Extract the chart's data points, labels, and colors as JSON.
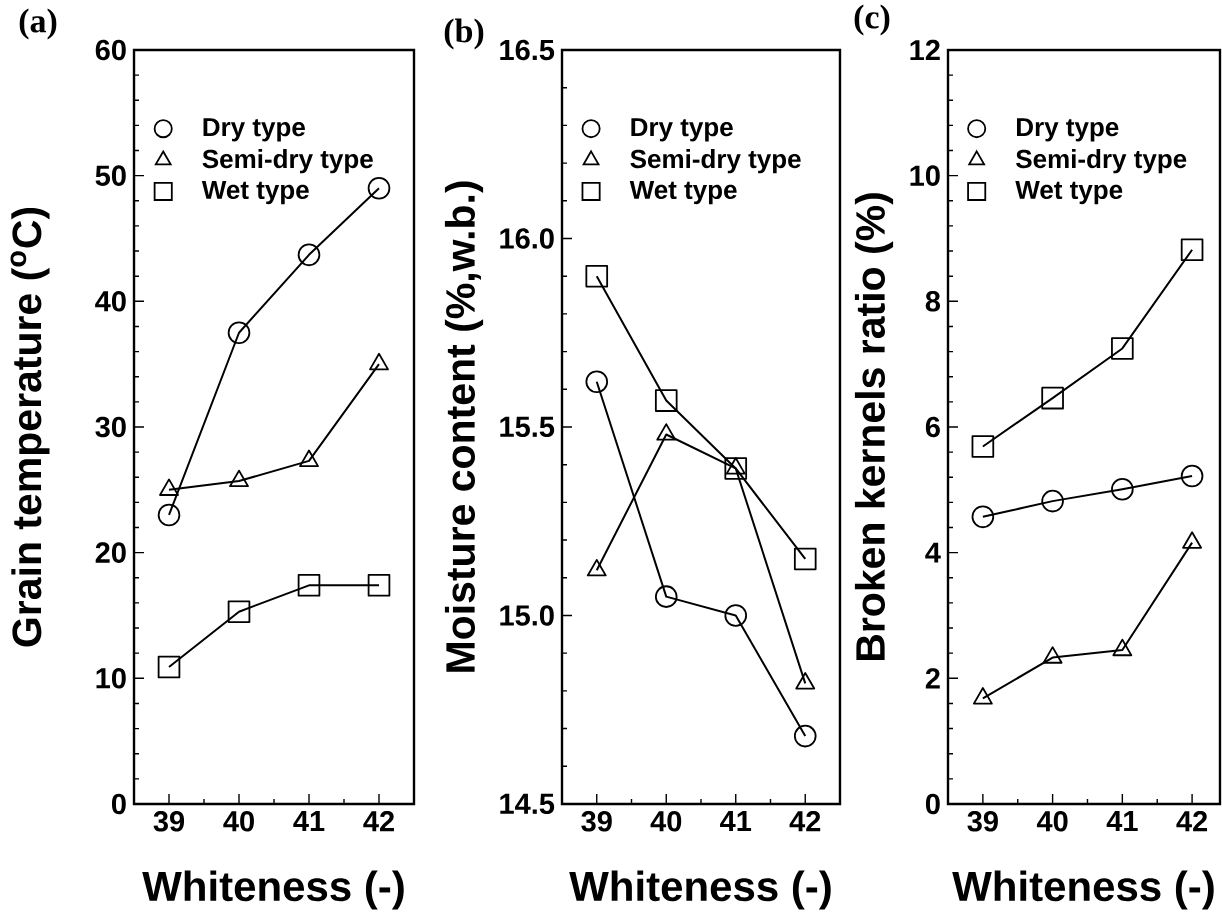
{
  "chart_data": [
    {
      "type": "line",
      "title": "(a)",
      "xlabel": "Whiteness (-)",
      "ylabel": "Grain temperature ($^{o}$C)",
      "x": [
        39,
        40,
        41,
        42
      ],
      "xlim": [
        38.5,
        42.5
      ],
      "xticks": [
        39,
        {
          "value": 39.5,
          "label": null
        },
        40,
        {
          "value": 40.5,
          "label": null
        },
        41,
        {
          "value": 41.5,
          "label": null
        },
        42
      ],
      "ylim": [
        0,
        60
      ],
      "yticks": [
        0,
        {
          "value": 2,
          "label": null
        },
        {
          "value": 4,
          "label": null
        },
        {
          "value": 6,
          "label": null
        },
        {
          "value": 8,
          "label": null
        },
        10,
        {
          "value": 12,
          "label": null
        },
        {
          "value": 14,
          "label": null
        },
        {
          "value": 16,
          "label": null
        },
        {
          "value": 18,
          "label": null
        },
        20,
        {
          "value": 22,
          "label": null
        },
        {
          "value": 24,
          "label": null
        },
        {
          "value": 26,
          "label": null
        },
        {
          "value": 28,
          "label": null
        },
        30,
        {
          "value": 32,
          "label": null
        },
        {
          "value": 34,
          "label": null
        },
        {
          "value": 36,
          "label": null
        },
        {
          "value": 38,
          "label": null
        },
        40,
        {
          "value": 42,
          "label": null
        },
        {
          "value": 44,
          "label": null
        },
        {
          "value": 46,
          "label": null
        },
        {
          "value": 48,
          "label": null
        },
        50,
        {
          "value": 52,
          "label": null
        },
        {
          "value": 54,
          "label": null
        },
        {
          "value": 56,
          "label": null
        },
        {
          "value": 58,
          "label": null
        },
        60
      ],
      "series": [
        {
          "name": "Dry type",
          "color": "#000000",
          "marker": "circle",
          "values": [
            23.0,
            37.5,
            43.7,
            49.0
          ]
        },
        {
          "name": "Semi-dry type",
          "color": "#000000",
          "marker": "triangle",
          "values": [
            25.0,
            25.7,
            27.3,
            35.0
          ]
        },
        {
          "name": "Wet type",
          "color": "#000000",
          "marker": "square",
          "values": [
            10.9,
            15.3,
            17.4,
            17.4
          ]
        }
      ],
      "legend": "top left",
      "grid": false
    },
    {
      "type": "line",
      "title": "(b)",
      "xlabel": "Whiteness (-)",
      "ylabel": "Moisture content (%,w.b.)",
      "x": [
        39,
        40,
        41,
        42
      ],
      "xlim": [
        38.5,
        42.5
      ],
      "xticks": [
        39,
        {
          "value": 39.5,
          "label": null
        },
        40,
        {
          "value": 40.5,
          "label": null
        },
        41,
        {
          "value": 41.5,
          "label": null
        },
        42
      ],
      "ylim": [
        14.5,
        16.5
      ],
      "yticks": [
        14.5,
        {
          "value": 14.6,
          "label": null
        },
        {
          "value": 14.7,
          "label": null
        },
        {
          "value": 14.8,
          "label": null
        },
        {
          "value": 14.9,
          "label": null
        },
        {
          "value": 15,
          "label": "15.0"
        },
        {
          "value": 15.1,
          "label": null
        },
        {
          "value": 15.2,
          "label": null
        },
        {
          "value": 15.3,
          "label": null
        },
        {
          "value": 15.4,
          "label": null
        },
        15.5,
        {
          "value": 15.6,
          "label": null
        },
        {
          "value": 15.7,
          "label": null
        },
        {
          "value": 15.8,
          "label": null
        },
        {
          "value": 15.9,
          "label": null
        },
        {
          "value": 16,
          "label": "16.0"
        },
        {
          "value": 16.1,
          "label": null
        },
        {
          "value": 16.2,
          "label": null
        },
        {
          "value": 16.3,
          "label": null
        },
        {
          "value": 16.4,
          "label": null
        },
        16.5
      ],
      "series": [
        {
          "name": "Dry type",
          "color": "#000000",
          "marker": "circle",
          "values": [
            15.62,
            15.05,
            15.0,
            14.68
          ]
        },
        {
          "name": "Semi-dry type",
          "color": "#000000",
          "marker": "triangle",
          "values": [
            15.12,
            15.48,
            15.39,
            14.82
          ]
        },
        {
          "name": "Wet type",
          "color": "#000000",
          "marker": "square",
          "values": [
            15.9,
            15.57,
            15.39,
            15.15
          ]
        }
      ],
      "legend": "top left",
      "grid": false
    },
    {
      "type": "line",
      "title": "(c)",
      "xlabel": "Whiteness (-)",
      "ylabel": "Broken kernels ratio (%)",
      "x": [
        39,
        40,
        41,
        42
      ],
      "xlim": [
        38.5,
        42.4
      ],
      "xticks": [
        39,
        {
          "value": 39.5,
          "label": null
        },
        40,
        {
          "value": 40.5,
          "label": null
        },
        41,
        {
          "value": 41.5,
          "label": null
        },
        42
      ],
      "ylim": [
        0,
        12
      ],
      "yticks": [
        0,
        {
          "value": 0.4,
          "label": null
        },
        {
          "value": 0.8,
          "label": null
        },
        {
          "value": 1.2,
          "label": null
        },
        {
          "value": 1.6,
          "label": null
        },
        2,
        {
          "value": 2.4,
          "label": null
        },
        {
          "value": 2.8,
          "label": null
        },
        {
          "value": 3.2,
          "label": null
        },
        {
          "value": 3.6,
          "label": null
        },
        4,
        {
          "value": 4.4,
          "label": null
        },
        {
          "value": 4.8,
          "label": null
        },
        {
          "value": 5.2,
          "label": null
        },
        {
          "value": 5.6,
          "label": null
        },
        6,
        {
          "value": 6.4,
          "label": null
        },
        {
          "value": 6.8,
          "label": null
        },
        {
          "value": 7.2,
          "label": null
        },
        {
          "value": 7.6,
          "label": null
        },
        8,
        {
          "value": 8.4,
          "label": null
        },
        {
          "value": 8.8,
          "label": null
        },
        {
          "value": 9.2,
          "label": null
        },
        {
          "value": 9.6,
          "label": null
        },
        10,
        {
          "value": 10.4,
          "label": null
        },
        {
          "value": 10.8,
          "label": null
        },
        {
          "value": 11.2,
          "label": null
        },
        {
          "value": 11.6,
          "label": null
        },
        12
      ],
      "series": [
        {
          "name": "Dry type",
          "color": "#000000",
          "marker": "circle",
          "values": [
            4.57,
            4.82,
            5.01,
            5.22
          ]
        },
        {
          "name": "Semi-dry type",
          "color": "#000000",
          "marker": "triangle",
          "values": [
            1.68,
            2.33,
            2.45,
            4.16
          ]
        },
        {
          "name": "Wet type",
          "color": "#000000",
          "marker": "square",
          "values": [
            5.69,
            6.46,
            7.25,
            8.82
          ]
        }
      ],
      "legend": "top left",
      "grid": false
    }
  ]
}
